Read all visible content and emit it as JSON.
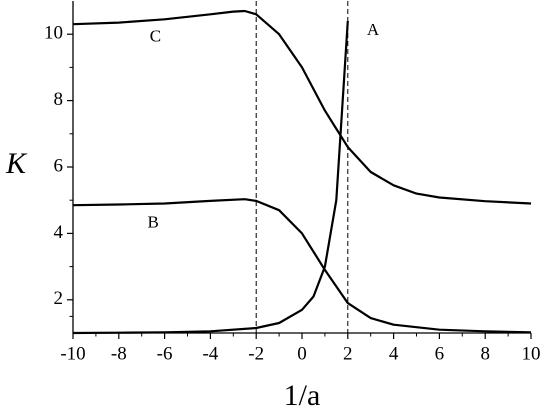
{
  "chart_data": {
    "type": "line",
    "x_label": "1/a",
    "y_label": "K",
    "xlim": [
      -10,
      10
    ],
    "ylim": [
      1,
      11
    ],
    "xticks": [
      -10,
      -8,
      -6,
      -4,
      -2,
      0,
      2,
      4,
      6,
      8,
      10
    ],
    "yticks": [
      2,
      4,
      6,
      8,
      10
    ],
    "vlines": [
      -2,
      2
    ],
    "series": [
      {
        "name": "A",
        "color": "#000000",
        "x": [
          -10,
          -8,
          -6,
          -4,
          -2,
          -1,
          0,
          0.5,
          1,
          1.5,
          2
        ],
        "values": [
          1.0,
          1.01,
          1.02,
          1.05,
          1.15,
          1.3,
          1.7,
          2.1,
          3.0,
          5.0,
          10.4
        ]
      },
      {
        "name": "B",
        "color": "#000000",
        "x": [
          -10,
          -8,
          -6,
          -4,
          -2.5,
          -2,
          -1,
          0,
          1,
          2,
          3,
          4,
          6,
          8,
          10
        ],
        "values": [
          4.85,
          4.87,
          4.9,
          4.98,
          5.03,
          4.98,
          4.7,
          4.0,
          2.9,
          1.9,
          1.45,
          1.25,
          1.1,
          1.05,
          1.02
        ]
      },
      {
        "name": "C",
        "color": "#000000",
        "x": [
          -10,
          -8,
          -6,
          -4,
          -3,
          -2.5,
          -2,
          -1,
          0,
          1,
          2,
          3,
          4,
          5,
          6,
          8,
          10
        ],
        "values": [
          10.3,
          10.35,
          10.45,
          10.6,
          10.68,
          10.7,
          10.6,
          10.0,
          9.0,
          7.7,
          6.6,
          5.85,
          5.45,
          5.2,
          5.08,
          4.97,
          4.9
        ]
      }
    ]
  }
}
